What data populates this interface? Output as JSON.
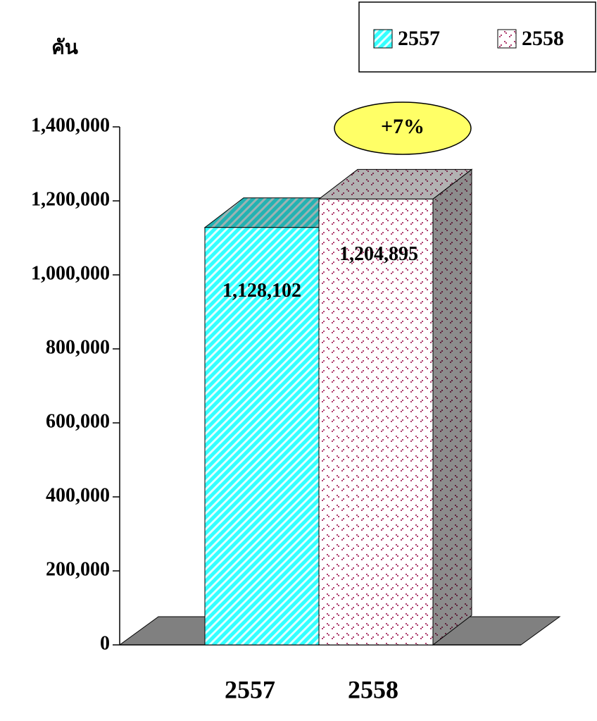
{
  "chart_data": {
    "type": "bar",
    "ylabel": "คัน",
    "categories": [
      "2557",
      "2558"
    ],
    "values": [
      1128102,
      1204895
    ],
    "value_labels": [
      "1,128,102",
      "1,204,895"
    ],
    "colors": [
      "#33ffff",
      "#ffffff"
    ],
    "annotation": "+7%",
    "ylim": [
      0,
      1400000
    ],
    "yticks": [
      0,
      {
        "value": 200000,
        "label": "200,000"
      },
      {
        "value": 400000,
        "label": "400,000"
      },
      {
        "value": 600000,
        "label": "600,000"
      },
      {
        "value": 800000,
        "label": "800,000"
      },
      {
        "value": 1000000,
        "label": "1,000,000"
      },
      {
        "value": 1200000,
        "label": "1,200,000"
      },
      {
        "value": 1400000,
        "label": "1,400,000"
      }
    ],
    "legend": "top-right"
  }
}
